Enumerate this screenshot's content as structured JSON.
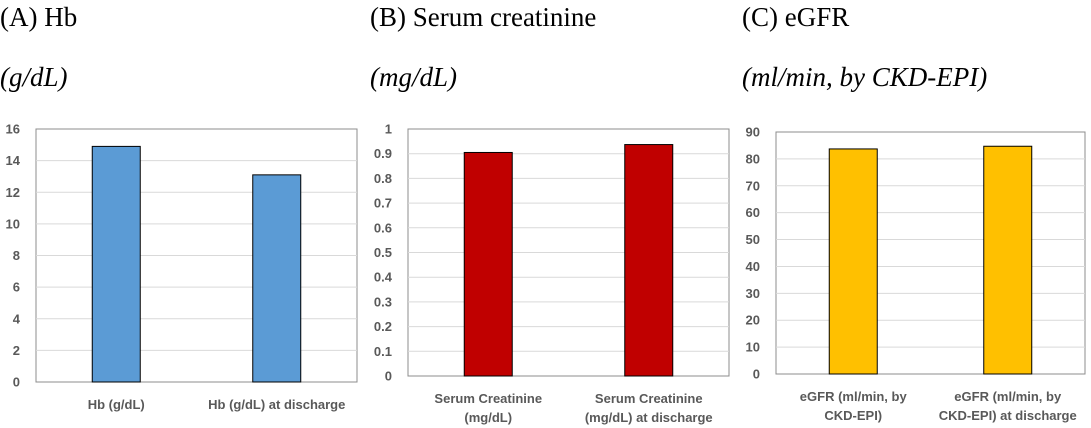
{
  "panels": [
    {
      "title": "(A) Hb",
      "unit": "(g/dL)"
    },
    {
      "title": "(B) Serum creatinine",
      "unit": "(mg/dL)"
    },
    {
      "title": "(C) eGFR",
      "unit": "(ml/min, by CKD-EPI)"
    }
  ],
  "chart_data": [
    {
      "type": "bar",
      "title": "(A) Hb",
      "ylabel": "(g/dL)",
      "categories": [
        [
          "Hb (g/dL)"
        ],
        [
          "Hb (g/dL) at discharge"
        ]
      ],
      "values": [
        14.9,
        13.1
      ],
      "ylim": [
        0,
        16
      ],
      "yticks": [
        "0",
        "2",
        "4",
        "6",
        "8",
        "10",
        "12",
        "14",
        "16"
      ],
      "grid": true,
      "color": "#5B9BD5"
    },
    {
      "type": "bar",
      "title": "(B) Serum creatinine",
      "ylabel": "(mg/dL)",
      "categories": [
        [
          "Serum Creatinine",
          "(mg/dL)"
        ],
        [
          "Serum Creatinine",
          "(mg/dL) at discharge"
        ]
      ],
      "values": [
        0.905,
        0.937
      ],
      "ylim": [
        0,
        1
      ],
      "yticks": [
        "0",
        "0.1",
        "0.2",
        "0.3",
        "0.4",
        "0.5",
        "0.6",
        "0.7",
        "0.8",
        "0.9",
        "1"
      ],
      "grid": true,
      "color": "#C00000"
    },
    {
      "type": "bar",
      "title": "(C) eGFR",
      "ylabel": "(ml/min, by CKD-EPI)",
      "categories": [
        [
          "eGFR (ml/min, by",
          "CKD-EPI)"
        ],
        [
          "eGFR (ml/min, by",
          "CKD-EPI) at discharge"
        ]
      ],
      "values": [
        83.7,
        84.7
      ],
      "ylim": [
        0,
        90
      ],
      "yticks": [
        "0",
        "10",
        "20",
        "30",
        "40",
        "50",
        "60",
        "70",
        "80",
        "90"
      ],
      "grid": true,
      "color": "#FFC000"
    }
  ]
}
